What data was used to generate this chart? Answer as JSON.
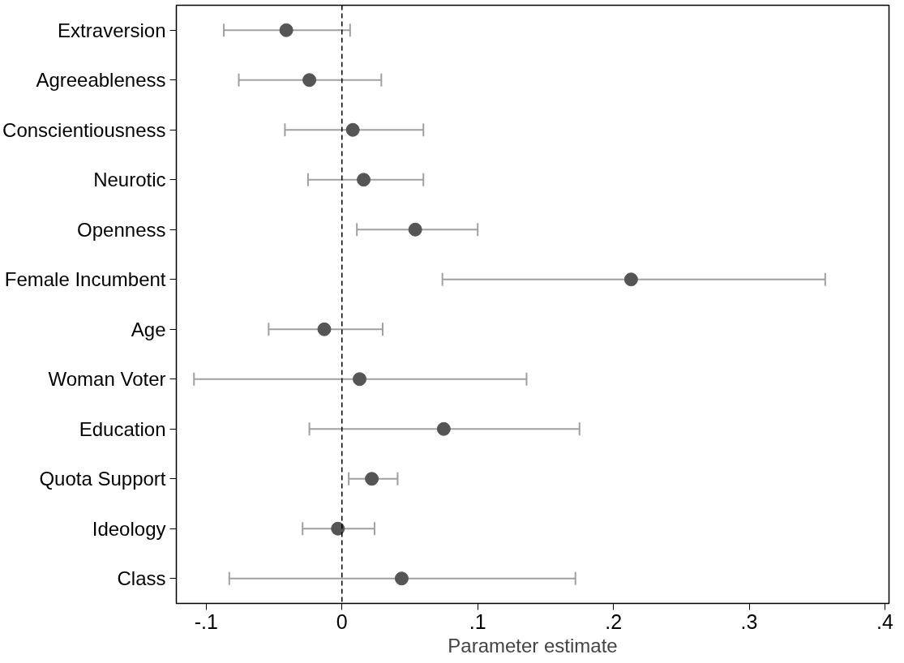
{
  "chart_data": {
    "type": "scatter",
    "orientation": "horizontal",
    "xlabel": "Parameter estimate",
    "categories": [
      "Extraversion",
      "Agreeableness",
      "Conscientiousness",
      "Neurotic",
      "Openness",
      "Female Incumbent",
      "Age",
      "Woman Voter",
      "Education",
      "Quota Support",
      "Ideology",
      "Class"
    ],
    "series": [
      {
        "color": "#555555",
        "values": [
          -0.041,
          -0.024,
          0.008,
          0.016,
          0.054,
          0.213,
          -0.013,
          0.013,
          0.075,
          0.022,
          -0.003,
          0.044
        ],
        "errors": [
          [
            -0.087,
            0.006
          ],
          [
            -0.076,
            0.029
          ],
          [
            -0.042,
            0.06
          ],
          [
            -0.025,
            0.06
          ],
          [
            0.011,
            0.1
          ],
          [
            0.074,
            0.356
          ],
          [
            -0.054,
            0.03
          ],
          [
            -0.109,
            0.136
          ],
          [
            -0.024,
            0.175
          ],
          [
            0.005,
            0.041
          ],
          [
            -0.029,
            0.024
          ],
          [
            -0.083,
            0.172
          ]
        ]
      }
    ],
    "xlim": [
      -0.122,
      0.403
    ],
    "xticks": [
      {
        "value": -0.1,
        "label": "-.1"
      },
      0,
      {
        "value": 0.1,
        "label": ".1"
      },
      {
        "value": 0.2,
        "label": ".2"
      },
      {
        "value": 0.3,
        "label": ".3"
      },
      {
        "value": 0.4,
        "label": ".4"
      }
    ],
    "ref_lines": [
      {
        "axis": "x",
        "value": 0,
        "color": "#000000",
        "line_style": "dashed"
      }
    ],
    "marker": "circle",
    "grid": false
  }
}
